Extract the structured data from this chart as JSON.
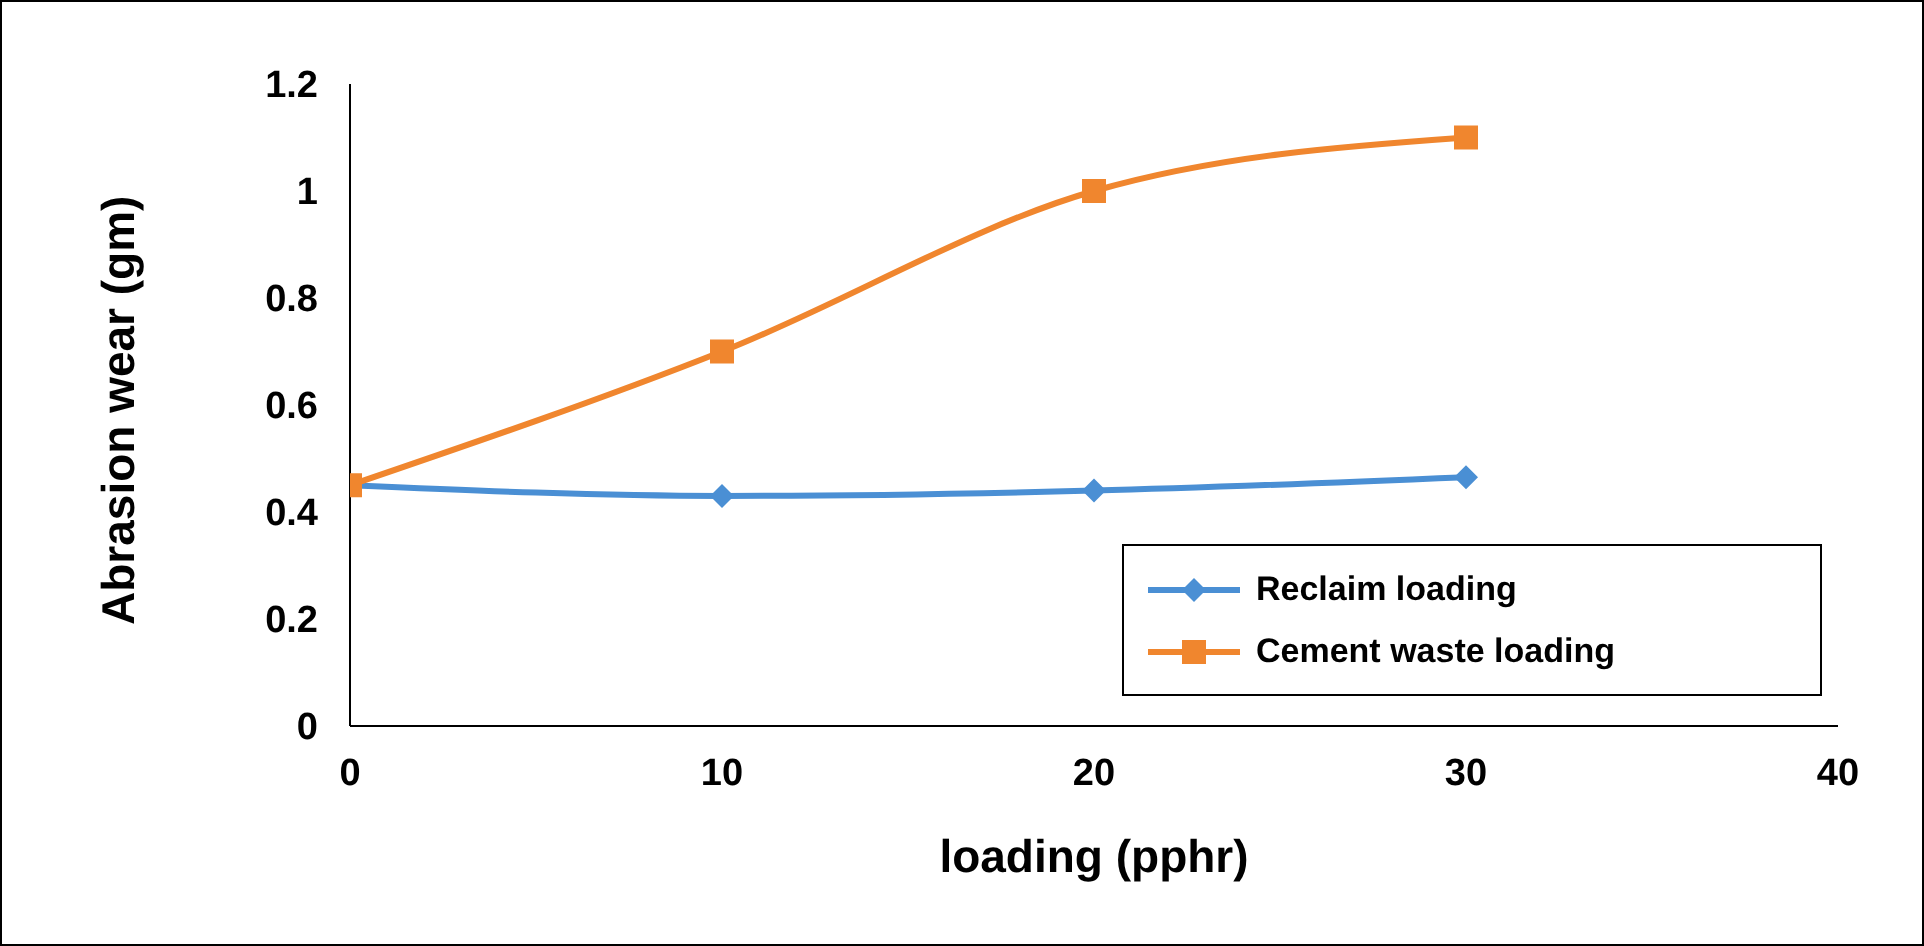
{
  "chart_data": {
    "type": "line",
    "xlabel": "loading (pphr)",
    "ylabel": "Abrasion wear (gm)",
    "x": [
      0,
      10,
      20,
      30
    ],
    "series": [
      {
        "name": "Reclaim  loading",
        "color": "#4a8fd4",
        "marker": "diamond",
        "values": [
          0.45,
          0.43,
          0.44,
          0.465
        ]
      },
      {
        "name": "Cement waste loading",
        "color": "#f0862e",
        "marker": "square",
        "values": [
          0.45,
          0.7,
          1.0,
          1.1
        ]
      }
    ],
    "xlim": [
      0,
      40
    ],
    "xticks": [
      0,
      10,
      20,
      30,
      40
    ],
    "ylim": [
      0,
      1.2
    ],
    "yticks": [
      0,
      0.2,
      0.4,
      0.6,
      0.8,
      1,
      1.2
    ],
    "grid": false,
    "legend": "bottom right"
  }
}
